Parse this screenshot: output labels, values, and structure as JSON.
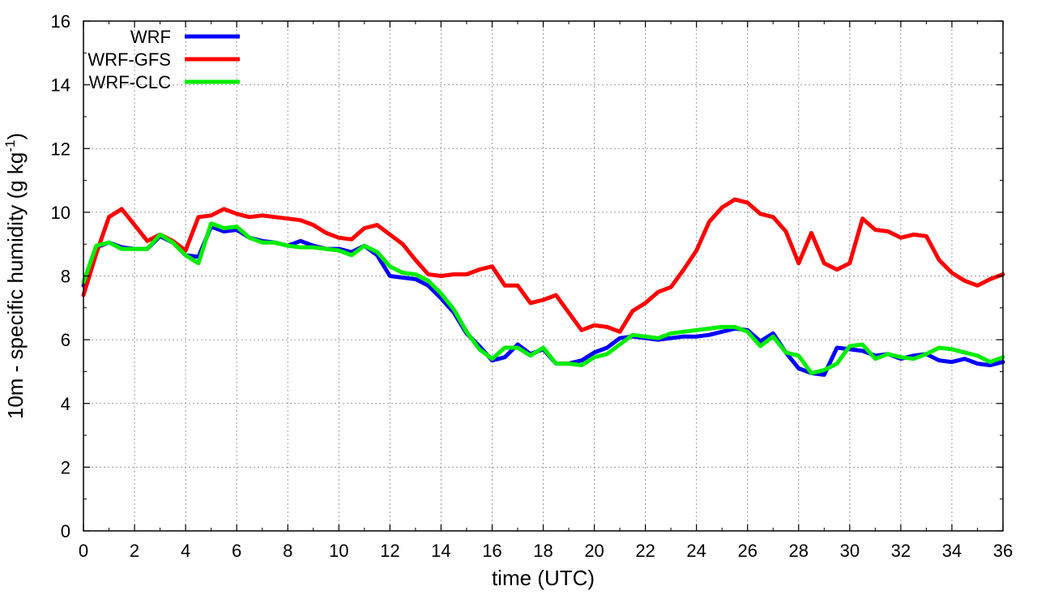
{
  "chart_data": {
    "type": "line",
    "xlabel": "time (UTC)",
    "ylabel_prefix": "10m - specific humidity (g kg",
    "ylabel_exponent": "-1",
    "ylabel_suffix": ")",
    "xlim": [
      0,
      36
    ],
    "ylim": [
      0,
      16
    ],
    "x_ticks": [
      "0",
      "2",
      "4",
      "6",
      "8",
      "10",
      "12",
      "14",
      "16",
      "18",
      "20",
      "22",
      "24",
      "26",
      "28",
      "30",
      "32",
      "34",
      "36"
    ],
    "y_ticks": [
      "0",
      "2",
      "4",
      "6",
      "8",
      "10",
      "12",
      "14",
      "16"
    ],
    "grid": true,
    "legend_position": "top-left",
    "x": [
      0,
      0.5,
      1,
      1.5,
      2,
      2.5,
      3,
      3.5,
      4,
      4.5,
      5,
      5.5,
      6,
      6.5,
      7,
      7.5,
      8,
      8.5,
      9,
      9.5,
      10,
      10.5,
      11,
      11.5,
      12,
      12.5,
      13,
      13.5,
      14,
      14.5,
      15,
      15.5,
      16,
      16.5,
      17,
      17.5,
      18,
      18.5,
      19,
      19.5,
      20,
      20.5,
      21,
      21.5,
      22,
      22.5,
      23,
      23.5,
      24,
      24.5,
      25,
      25.5,
      26,
      26.5,
      27,
      27.5,
      28,
      28.5,
      29,
      29.5,
      30,
      30.5,
      31,
      31.5,
      32,
      32.5,
      33,
      33.5,
      34,
      34.5,
      35,
      35.5,
      36
    ],
    "series": [
      {
        "name": "WRF",
        "color": "#0000ff",
        "values": [
          7.7,
          8.9,
          9.05,
          8.9,
          8.85,
          8.85,
          9.25,
          9.05,
          8.65,
          8.6,
          9.55,
          9.4,
          9.45,
          9.2,
          9.1,
          9.05,
          8.95,
          9.1,
          8.95,
          8.85,
          8.85,
          8.75,
          8.95,
          8.65,
          8.0,
          7.95,
          7.9,
          7.7,
          7.3,
          6.85,
          6.2,
          5.8,
          5.35,
          5.45,
          5.85,
          5.55,
          5.7,
          5.25,
          5.25,
          5.35,
          5.6,
          5.75,
          6.05,
          6.1,
          6.05,
          6.0,
          6.05,
          6.1,
          6.1,
          6.15,
          6.25,
          6.35,
          6.3,
          5.95,
          6.2,
          5.6,
          5.1,
          4.95,
          4.9,
          5.75,
          5.7,
          5.65,
          5.5,
          5.55,
          5.4,
          5.5,
          5.55,
          5.35,
          5.3,
          5.4,
          5.25,
          5.2,
          5.3
        ]
      },
      {
        "name": "WRF-GFS",
        "color": "#ff0000",
        "values": [
          7.4,
          8.7,
          9.85,
          10.1,
          9.6,
          9.1,
          9.3,
          9.1,
          8.8,
          9.85,
          9.9,
          10.1,
          9.95,
          9.85,
          9.9,
          9.85,
          9.8,
          9.75,
          9.6,
          9.35,
          9.2,
          9.15,
          9.5,
          9.6,
          9.3,
          9.0,
          8.5,
          8.05,
          8.0,
          8.05,
          8.05,
          8.2,
          8.3,
          7.7,
          7.7,
          7.15,
          7.25,
          7.4,
          6.85,
          6.3,
          6.45,
          6.4,
          6.25,
          6.9,
          7.15,
          7.5,
          7.65,
          8.2,
          8.8,
          9.7,
          10.15,
          10.4,
          10.3,
          9.95,
          9.85,
          9.4,
          8.4,
          9.35,
          8.4,
          8.2,
          8.4,
          9.8,
          9.45,
          9.4,
          9.2,
          9.3,
          9.25,
          8.5,
          8.1,
          7.85,
          7.7,
          7.9,
          8.05
        ]
      },
      {
        "name": "WRF-CLC",
        "color": "#00ee00",
        "values": [
          7.8,
          8.95,
          9.05,
          8.85,
          8.85,
          8.85,
          9.3,
          9.05,
          8.65,
          8.4,
          9.65,
          9.5,
          9.55,
          9.2,
          9.05,
          9.05,
          8.95,
          8.9,
          8.9,
          8.85,
          8.8,
          8.65,
          8.95,
          8.75,
          8.3,
          8.1,
          8.05,
          7.85,
          7.45,
          6.95,
          6.25,
          5.7,
          5.4,
          5.75,
          5.75,
          5.5,
          5.75,
          5.25,
          5.25,
          5.2,
          5.45,
          5.55,
          5.85,
          6.15,
          6.1,
          6.05,
          6.2,
          6.25,
          6.3,
          6.35,
          6.4,
          6.4,
          6.25,
          5.8,
          6.1,
          5.6,
          5.5,
          4.95,
          5.05,
          5.25,
          5.8,
          5.85,
          5.4,
          5.55,
          5.45,
          5.4,
          5.55,
          5.75,
          5.7,
          5.6,
          5.5,
          5.3,
          5.45
        ]
      }
    ]
  }
}
